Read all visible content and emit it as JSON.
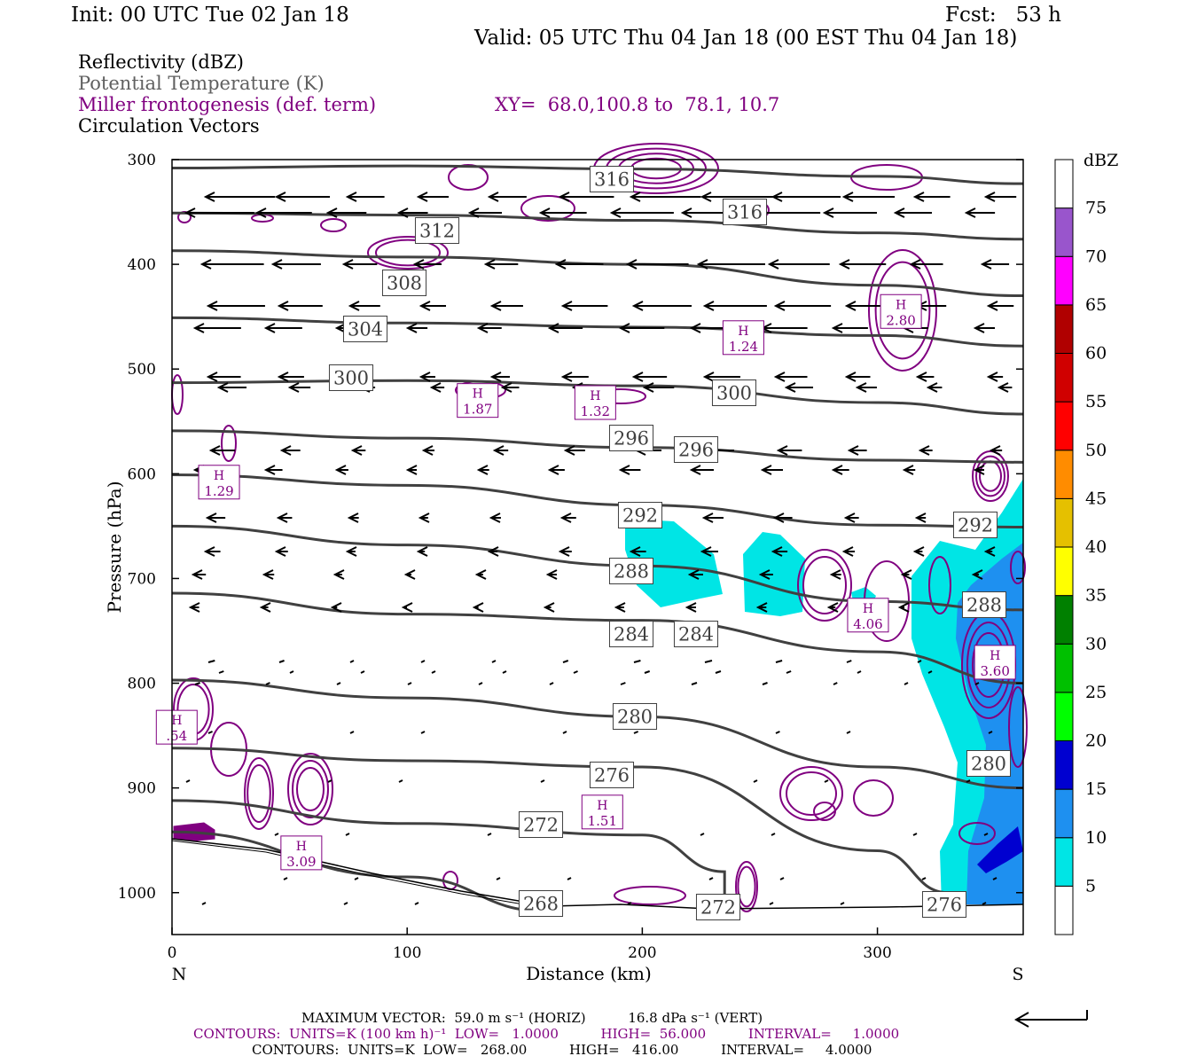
{
  "header": {
    "init": "Init: 00 UTC Tue 02 Jan 18",
    "fcst": "Fcst:   53 h",
    "valid": "Valid: 05 UTC Thu 04 Jan 18 (00 EST Thu 04 Jan 18)"
  },
  "legend": {
    "reflectivity": "Reflectivity (dBZ)",
    "theta": "Potential Temperature (K)",
    "frontogenesis": "Miller frontogenesis (def. term)",
    "xy": "XY=  68.0,100.8 to  78.1, 10.7",
    "vectors": "Circulation Vectors"
  },
  "colors": {
    "theta": "#404040",
    "fronto": "#800080",
    "vector": "#000000",
    "refl_5": "#00e5e5",
    "refl_10": "#1e90f0",
    "refl_15": "#0000d0"
  },
  "chart_data": {
    "type": "cross-section",
    "xlabel": "Distance (km)",
    "ylabel": "Pressure (hPa)",
    "xlim": [
      0,
      362
    ],
    "ylim": [
      1040,
      300
    ],
    "x_ticks": [
      "0",
      "100",
      "200",
      "300"
    ],
    "y_ticks": [
      "300",
      "400",
      "500",
      "600",
      "700",
      "800",
      "900",
      "1000"
    ],
    "left_end_label": "N",
    "right_end_label": "S",
    "colorbar": {
      "title": "dBZ",
      "labels": [
        "5",
        "10",
        "15",
        "20",
        "25",
        "30",
        "35",
        "40",
        "45",
        "50",
        "55",
        "60",
        "65",
        "70",
        "75"
      ],
      "colors": [
        "#ffffff",
        "#00e5e5",
        "#1e90f0",
        "#0000d0",
        "#00ff00",
        "#00c000",
        "#008000",
        "#ffff00",
        "#e5c000",
        "#ff8c00",
        "#ff0000",
        "#d00000",
        "#b00000",
        "#ff00ff",
        "#9955cc",
        "#ffffff"
      ]
    },
    "theta_contours": [
      {
        "label": "316",
        "points": [
          [
            0,
            308
          ],
          [
            100,
            306
          ],
          [
            200,
            309
          ],
          [
            300,
            316
          ],
          [
            362,
            323
          ]
        ]
      },
      {
        "label": "312",
        "points": [
          [
            0,
            351
          ],
          [
            100,
            353
          ],
          [
            200,
            358
          ],
          [
            300,
            370
          ],
          [
            362,
            376
          ]
        ]
      },
      {
        "label": "308",
        "points": [
          [
            0,
            387
          ],
          [
            100,
            393
          ],
          [
            200,
            400
          ],
          [
            300,
            420
          ],
          [
            362,
            430
          ]
        ]
      },
      {
        "label": "304",
        "points": [
          [
            0,
            451
          ],
          [
            100,
            456
          ],
          [
            200,
            460
          ],
          [
            300,
            468
          ],
          [
            362,
            478
          ]
        ]
      },
      {
        "label": "300",
        "points": [
          [
            0,
            513
          ],
          [
            100,
            511
          ],
          [
            200,
            516
          ],
          [
            300,
            532
          ],
          [
            362,
            543
          ]
        ]
      },
      {
        "label": "296",
        "points": [
          [
            0,
            559
          ],
          [
            100,
            566
          ],
          [
            200,
            575
          ],
          [
            300,
            587
          ],
          [
            362,
            589
          ]
        ]
      },
      {
        "label": "292",
        "points": [
          [
            0,
            601
          ],
          [
            100,
            611
          ],
          [
            200,
            630
          ],
          [
            300,
            649
          ],
          [
            362,
            651
          ]
        ]
      },
      {
        "label": "288",
        "points": [
          [
            0,
            650
          ],
          [
            100,
            668
          ],
          [
            200,
            688
          ],
          [
            300,
            722
          ],
          [
            362,
            730
          ]
        ]
      },
      {
        "label": "284",
        "points": [
          [
            0,
            714
          ],
          [
            100,
            734
          ],
          [
            200,
            740
          ],
          [
            300,
            770
          ],
          [
            362,
            800
          ]
        ]
      },
      {
        "label": "280",
        "points": [
          [
            0,
            797
          ],
          [
            100,
            814
          ],
          [
            200,
            832
          ],
          [
            300,
            880
          ],
          [
            362,
            900
          ]
        ]
      },
      {
        "label": "276",
        "points": [
          [
            0,
            862
          ],
          [
            100,
            874
          ],
          [
            200,
            880
          ],
          [
            300,
            960
          ],
          [
            330,
            1000
          ]
        ]
      },
      {
        "label": "272",
        "points": [
          [
            0,
            912
          ],
          [
            100,
            934
          ],
          [
            200,
            945
          ],
          [
            235,
            980
          ],
          [
            235,
            1010
          ]
        ]
      },
      {
        "label": "268",
        "points": [
          [
            0,
            942
          ],
          [
            100,
            985
          ],
          [
            160,
            1018
          ]
        ]
      }
    ],
    "refl_labels": [
      "288",
      "280",
      "276"
    ],
    "fronto_highs": [
      {
        "label": "H",
        "value": "2.80",
        "x": 310,
        "p": 445
      },
      {
        "label": "H",
        "value": "1.24",
        "x": 243,
        "p": 470
      },
      {
        "label": "H",
        "value": "1.87",
        "x": 130,
        "p": 530
      },
      {
        "label": "H",
        "value": "1.32",
        "x": 180,
        "p": 532
      },
      {
        "label": "H",
        "value": "1.29",
        "x": 20,
        "p": 608
      },
      {
        "label": "H",
        "value": "4.06",
        "x": 296,
        "p": 735
      },
      {
        "label": "H",
        "value": "3.60",
        "x": 350,
        "p": 780
      },
      {
        "label": "H",
        "value": ".54",
        "x": 2,
        "p": 842
      },
      {
        "label": "H",
        "value": "1.51",
        "x": 183,
        "p": 923
      },
      {
        "label": "H",
        "value": "3.09",
        "x": 55,
        "p": 962
      }
    ]
  },
  "footer": {
    "max_vector": "MAXIMUM VECTOR:  59.0 m s⁻¹ (HORIZ)          16.8 dPa s⁻¹ (VERT)",
    "contours_fronto": "CONTOURS:  UNITS=K (100 km h)⁻¹  LOW=   1.0000          HIGH=  56.000          INTERVAL=     1.0000",
    "contours_theta": "CONTOURS:  UNITS=K  LOW=   268.00          HIGH=   416.00          INTERVAL=     4.0000"
  }
}
